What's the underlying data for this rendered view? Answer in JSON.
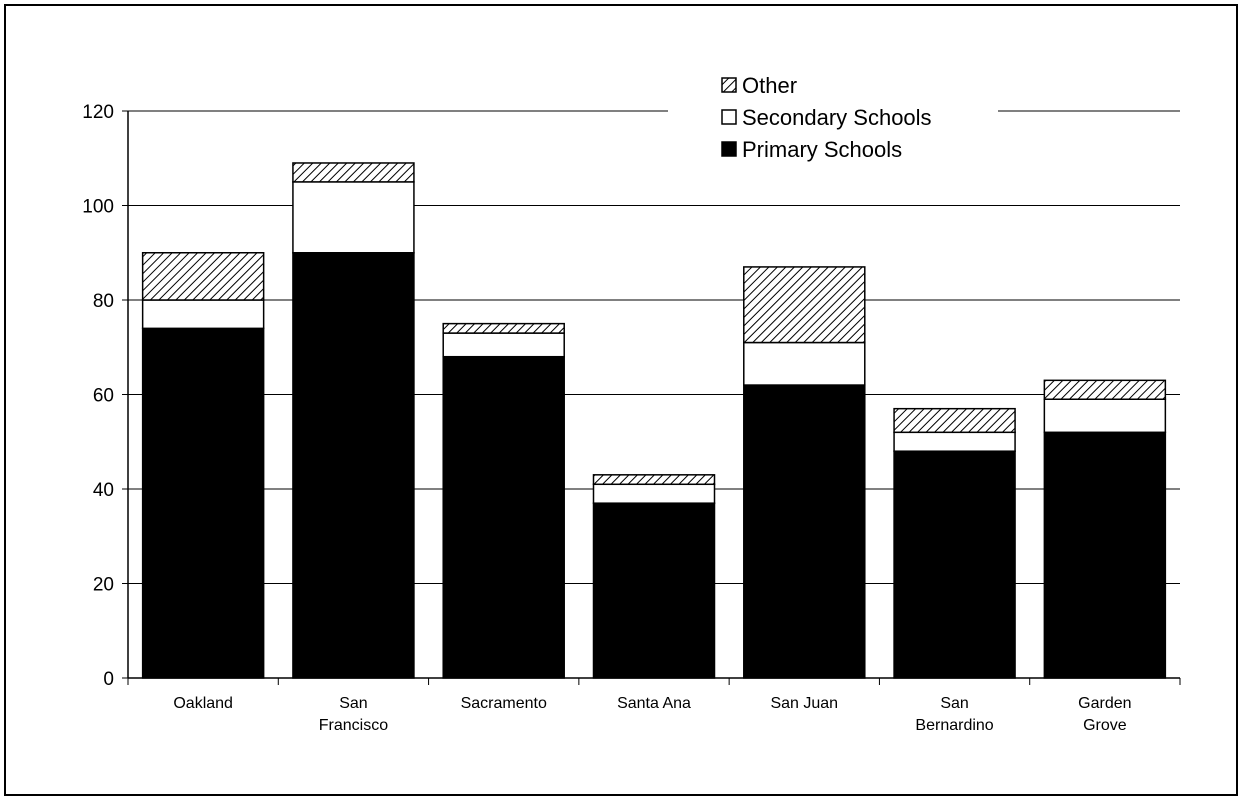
{
  "chart_data": {
    "type": "bar",
    "stacked": true,
    "title": "",
    "xlabel": "",
    "ylabel": "",
    "ylim": [
      0,
      120
    ],
    "yticks": [
      0,
      20,
      40,
      60,
      80,
      100,
      120
    ],
    "grid": true,
    "legend_position": "top-right",
    "categories": [
      [
        "Oakland"
      ],
      [
        "San",
        "Francisco"
      ],
      [
        "Sacramento"
      ],
      [
        "Santa Ana"
      ],
      [
        "San Juan"
      ],
      [
        "San",
        "Bernardino"
      ],
      [
        "Garden",
        "Grove"
      ]
    ],
    "series": [
      {
        "name": "Primary Schools",
        "fill": "solid",
        "color": "#000000",
        "values": [
          74,
          90,
          68,
          37,
          62,
          48,
          52
        ]
      },
      {
        "name": "Secondary Schools",
        "fill": "empty",
        "color": "#ffffff",
        "values": [
          6,
          15,
          5,
          4,
          9,
          4,
          7
        ]
      },
      {
        "name": "Other",
        "fill": "hatched",
        "color": "#000000",
        "values": [
          10,
          4,
          2,
          2,
          16,
          5,
          4
        ]
      }
    ],
    "legend_order": [
      "Other",
      "Secondary Schools",
      "Primary Schools"
    ]
  }
}
